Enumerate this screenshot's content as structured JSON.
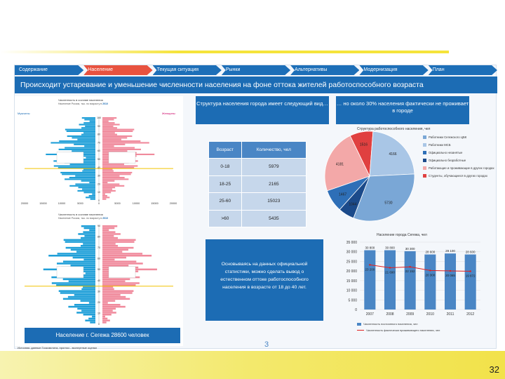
{
  "nav": [
    "Содержание",
    "Население",
    "Текущая ситуация",
    "Рынки",
    "Альтернативы",
    "Модернизация",
    "План"
  ],
  "nav_active": 1,
  "heading": "Происходит устаревание и уменьшение численности населения на фоне оттока жителей работоспособного возраста",
  "pyramid_top": {
    "title": "Численность в составе населения",
    "subtitle_prefix": "Население России, тыс. по возрасту в",
    "year": "2010",
    "male_label": "Мужчины",
    "female_label": "Женщины",
    "age_axis": [
      "100",
      "90",
      "80",
      "70",
      "60",
      "50",
      "40",
      "30",
      "20",
      "10",
      "0"
    ],
    "x_ticks": [
      "20000",
      "15000",
      "10000",
      "5000",
      "0",
      "5000",
      "10000",
      "15000",
      "20000"
    ]
  },
  "pyramid_bottom": {
    "title": "Численность в составе населения",
    "subtitle_prefix": "Население России, тыс. по возрасту в",
    "year": "2010",
    "age_axis": [
      "90",
      "80",
      "70",
      "60",
      "50",
      "40",
      "30",
      "20",
      "10",
      "0"
    ]
  },
  "population_box": "Население г. Сегежа    28600 человек",
  "source_note": "Источник: данные Госкомстата, прогноз - экспертные оценки",
  "structure_box": "Структура населения города имеет следующий вид…",
  "share_box": "… но около 30% населения фактически не проживает в городе",
  "age_table": {
    "headers": [
      "Возраст",
      "Количество, чел"
    ],
    "rows": [
      [
        "0-18",
        "5979"
      ],
      [
        "18-25",
        "2165"
      ],
      [
        "25-60",
        "15023"
      ],
      [
        ">60",
        "5435"
      ]
    ]
  },
  "conclusion_box": "Основываясь на данных официальной статистики, можно сделать вывод о естественном оттоке работоспособного населения в возрасте от 18 до 40 лет.",
  "pie": {
    "title": "Структура работоспособного населения, чел",
    "labels": [
      "1516",
      "4166",
      "5730",
      "1044",
      "1467",
      "4181"
    ],
    "legend": [
      {
        "text": "Работники Сегежского ЦБК",
        "color": "#7aa7d6"
      },
      {
        "text": "Работники МСБ",
        "color": "#a9c6e6"
      },
      {
        "text": "Официально незанятые",
        "color": "#2e6fb7"
      },
      {
        "text": "Официально безработные",
        "color": "#1b4a8a"
      },
      {
        "text": "Работающие и проживающие в других городах",
        "color": "#f3a8a8"
      },
      {
        "text": "Студенты, обучающиеся в других городах",
        "color": "#e04040"
      }
    ]
  },
  "chart_data": {
    "type": "bar",
    "title": "Население города Сегежа, чел",
    "categories": [
      "2007",
      "2008",
      "2009",
      "2010",
      "2011",
      "2012"
    ],
    "ylim": [
      0,
      35000
    ],
    "y_ticks": [
      "0",
      "5 000",
      "10 000",
      "15 000",
      "20 000",
      "25 000",
      "30 000",
      "35 000"
    ],
    "series": [
      {
        "name": "Численность постоянного населения, чел",
        "type": "bar",
        "values": [
          30800,
          30800,
          30300,
          28600,
          29100,
          28600
        ],
        "labels": [
          "30 800",
          "30 800",
          "30 300",
          "28 600",
          "29 100",
          "28 600"
        ]
      },
      {
        "name": "Численность фактически проживающего населения, чел",
        "type": "line",
        "values": [
          23200,
          21690,
          22152,
          20300,
          20065,
          19872
        ],
        "labels": [
          "23 200",
          "21 690",
          "22 152",
          "20 300",
          "20 065",
          "19 872"
        ]
      }
    ]
  },
  "page_marker": "3",
  "slide_number": "32"
}
